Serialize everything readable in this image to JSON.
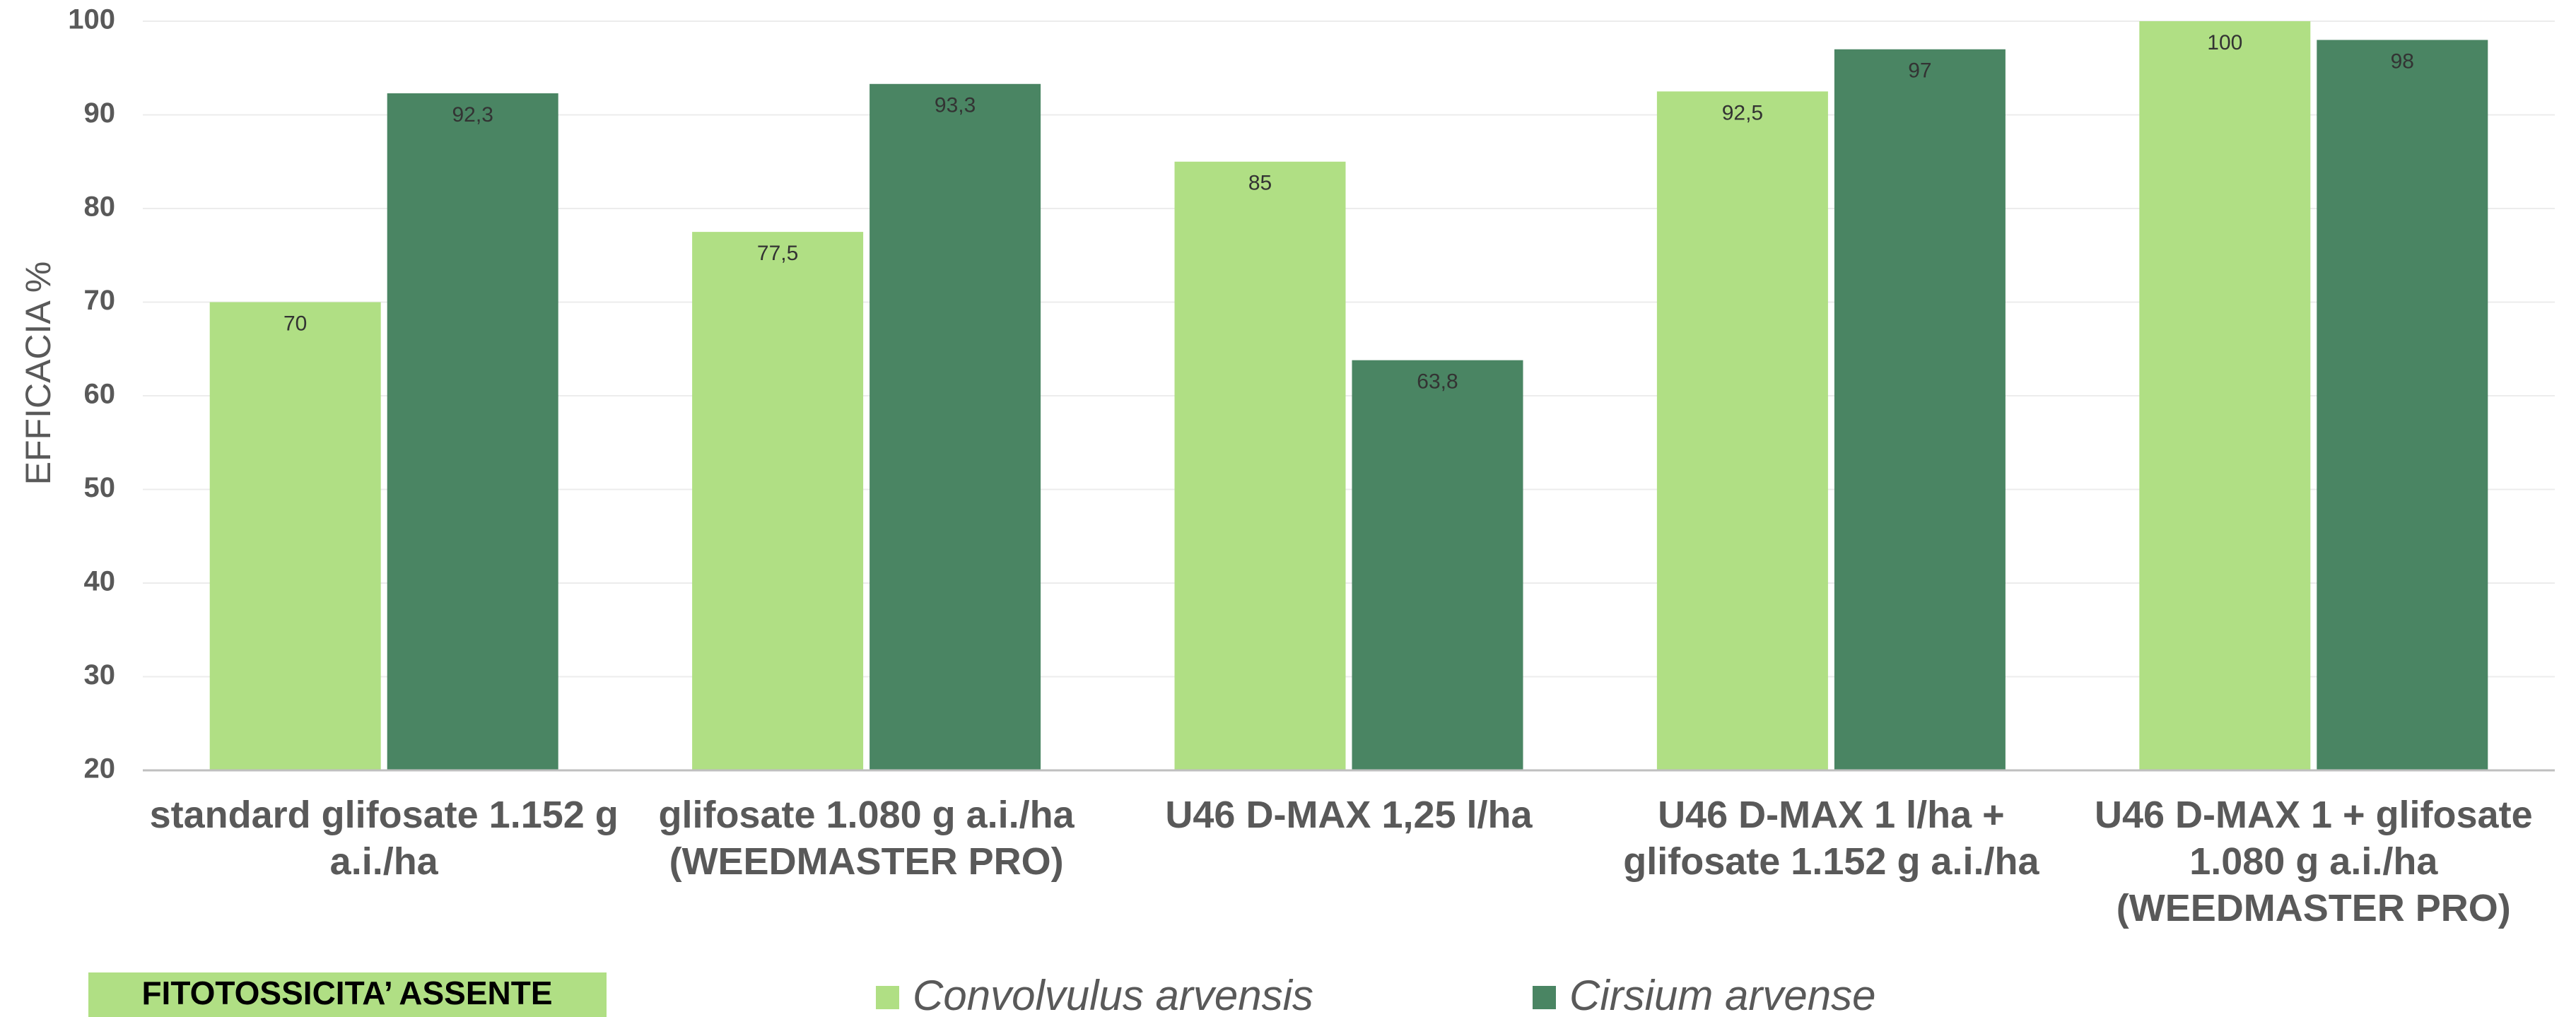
{
  "chart_data": {
    "type": "bar",
    "ylabel": "EFFICACIA %",
    "categories": [
      "standard glifosate 1.152 g a.i./ha",
      "glifosate 1.080 g a.i./ha (WEEDMASTER PRO)",
      "U46 D-MAX 1,25 l/ha",
      "U46 D-MAX 1 l/ha + glifosate 1.152 g a.i./ha",
      "U46 D-MAX 1 + glifosate 1.080 g a.i./ha (WEEDMASTER PRO)"
    ],
    "series": [
      {
        "name": "Convolvulus arvensis",
        "color": "#b0df84",
        "values": [
          70,
          77.5,
          85,
          92.5,
          100
        ],
        "value_labels": [
          "70",
          "77,5",
          "85",
          "92,5",
          "100"
        ]
      },
      {
        "name": "Cirsium arvense",
        "color": "#4a8563",
        "values": [
          92.3,
          93.3,
          63.8,
          97,
          98
        ],
        "value_labels": [
          "92,3",
          "93,3",
          "63,8",
          "97",
          "98"
        ]
      }
    ],
    "ylim": [
      20,
      100
    ],
    "yticks": [
      20,
      30,
      40,
      50,
      60,
      70,
      80,
      90,
      100
    ],
    "grid": true,
    "annotation": "FITOTOSSICITA’ ASSENTE",
    "annotation_color": "#b0df84"
  }
}
